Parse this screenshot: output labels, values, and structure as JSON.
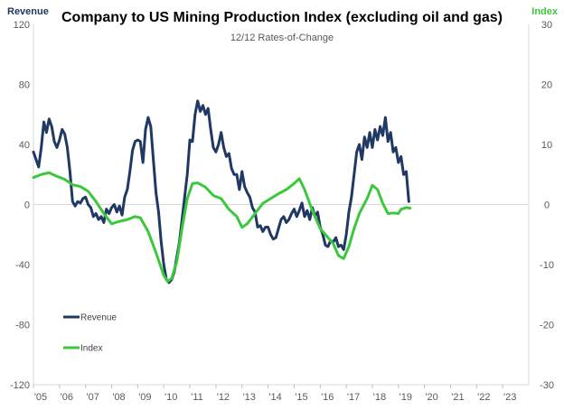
{
  "chart_data": {
    "type": "line",
    "title": "Company to US Mining Production Index (excluding oil and gas)",
    "subtitle": "12/12 Rates-of-Change",
    "y_left_label": "Revenue",
    "y_right_label": "Index",
    "y_left_range": [
      -120,
      120
    ],
    "y_left_ticks": [
      "120",
      "80",
      "40",
      "0",
      "-40",
      "-80",
      "-120"
    ],
    "y_right_range": [
      -30,
      30
    ],
    "y_right_ticks": [
      "30",
      "20",
      "10",
      "0",
      "-10",
      "-20",
      "-30"
    ],
    "x_range": [
      2005,
      2024
    ],
    "x_ticks": [
      "'05",
      "'06",
      "'07",
      "'08",
      "'09",
      "'10",
      "'11",
      "'12",
      "'13",
      "'14",
      "'15",
      "'16",
      "'17",
      "'18",
      "'19",
      "'20",
      "'21",
      "'22",
      "'23"
    ],
    "grid": false,
    "legend": "inside-bottom-left",
    "series": [
      {
        "name": "Revenue",
        "axis": "left",
        "color": "#1f3864",
        "points": [
          [
            2005.0,
            35
          ],
          [
            2005.1,
            30
          ],
          [
            2005.2,
            25
          ],
          [
            2005.3,
            38
          ],
          [
            2005.4,
            55
          ],
          [
            2005.5,
            48
          ],
          [
            2005.6,
            57
          ],
          [
            2005.7,
            52
          ],
          [
            2005.8,
            42
          ],
          [
            2005.9,
            38
          ],
          [
            2006.0,
            43
          ],
          [
            2006.1,
            50
          ],
          [
            2006.2,
            47
          ],
          [
            2006.3,
            38
          ],
          [
            2006.4,
            22
          ],
          [
            2006.5,
            2
          ],
          [
            2006.6,
            -1
          ],
          [
            2006.7,
            2
          ],
          [
            2006.8,
            1
          ],
          [
            2006.9,
            4
          ],
          [
            2007.0,
            5
          ],
          [
            2007.1,
            0
          ],
          [
            2007.2,
            -2
          ],
          [
            2007.3,
            -8
          ],
          [
            2007.4,
            -6
          ],
          [
            2007.5,
            -10
          ],
          [
            2007.6,
            -8
          ],
          [
            2007.7,
            -12
          ],
          [
            2007.8,
            -3
          ],
          [
            2007.9,
            -6
          ],
          [
            2008.0,
            -2
          ],
          [
            2008.1,
            0
          ],
          [
            2008.2,
            -5
          ],
          [
            2008.3,
            -1
          ],
          [
            2008.4,
            -7
          ],
          [
            2008.5,
            5
          ],
          [
            2008.6,
            10
          ],
          [
            2008.7,
            22
          ],
          [
            2008.8,
            36
          ],
          [
            2008.9,
            42
          ],
          [
            2009.0,
            43
          ],
          [
            2009.1,
            42
          ],
          [
            2009.2,
            28
          ],
          [
            2009.3,
            50
          ],
          [
            2009.4,
            58
          ],
          [
            2009.5,
            52
          ],
          [
            2009.6,
            30
          ],
          [
            2009.7,
            8
          ],
          [
            2009.8,
            -5
          ],
          [
            2009.9,
            -25
          ],
          [
            2010.0,
            -40
          ],
          [
            2010.1,
            -50
          ],
          [
            2010.2,
            -52
          ],
          [
            2010.3,
            -50
          ],
          [
            2010.4,
            -45
          ],
          [
            2010.5,
            -35
          ],
          [
            2010.6,
            -25
          ],
          [
            2010.7,
            -10
          ],
          [
            2010.8,
            5
          ],
          [
            2010.9,
            20
          ],
          [
            2011.0,
            43
          ],
          [
            2011.1,
            42
          ],
          [
            2011.2,
            60
          ],
          [
            2011.3,
            69
          ],
          [
            2011.4,
            62
          ],
          [
            2011.5,
            66
          ],
          [
            2011.6,
            60
          ],
          [
            2011.7,
            64
          ],
          [
            2011.8,
            50
          ],
          [
            2011.9,
            38
          ],
          [
            2012.0,
            35
          ],
          [
            2012.1,
            40
          ],
          [
            2012.2,
            48
          ],
          [
            2012.3,
            38
          ],
          [
            2012.4,
            32
          ],
          [
            2012.5,
            34
          ],
          [
            2012.6,
            24
          ],
          [
            2012.7,
            20
          ],
          [
            2012.8,
            20
          ],
          [
            2012.9,
            10
          ],
          [
            2013.0,
            22
          ],
          [
            2013.1,
            12
          ],
          [
            2013.2,
            8
          ],
          [
            2013.3,
            5
          ],
          [
            2013.4,
            -2
          ],
          [
            2013.5,
            -5
          ],
          [
            2013.6,
            -15
          ],
          [
            2013.7,
            -14
          ],
          [
            2013.8,
            -18
          ],
          [
            2013.9,
            -15
          ],
          [
            2014.0,
            -15
          ],
          [
            2014.1,
            -20
          ],
          [
            2014.2,
            -23
          ],
          [
            2014.3,
            -22
          ],
          [
            2014.4,
            -16
          ],
          [
            2014.5,
            -10
          ],
          [
            2014.6,
            -8
          ],
          [
            2014.7,
            -12
          ],
          [
            2014.8,
            -10
          ],
          [
            2014.9,
            -6
          ],
          [
            2015.0,
            -3
          ],
          [
            2015.1,
            -8
          ],
          [
            2015.2,
            -4
          ],
          [
            2015.3,
            1
          ],
          [
            2015.4,
            -8
          ],
          [
            2015.5,
            -4
          ],
          [
            2015.6,
            -10
          ],
          [
            2015.7,
            -2
          ],
          [
            2015.8,
            -8
          ],
          [
            2015.9,
            -5
          ],
          [
            2016.0,
            -15
          ],
          [
            2016.1,
            -20
          ],
          [
            2016.2,
            -27
          ],
          [
            2016.3,
            -28
          ],
          [
            2016.4,
            -24
          ],
          [
            2016.5,
            -25
          ],
          [
            2016.6,
            -22
          ],
          [
            2016.7,
            -28
          ],
          [
            2016.8,
            -27
          ],
          [
            2016.9,
            -30
          ],
          [
            2017.0,
            -20
          ],
          [
            2017.1,
            -5
          ],
          [
            2017.2,
            5
          ],
          [
            2017.3,
            20
          ],
          [
            2017.4,
            35
          ],
          [
            2017.5,
            40
          ],
          [
            2017.6,
            30
          ],
          [
            2017.7,
            45
          ],
          [
            2017.8,
            38
          ],
          [
            2017.9,
            48
          ],
          [
            2018.0,
            38
          ],
          [
            2018.1,
            50
          ],
          [
            2018.2,
            43
          ],
          [
            2018.3,
            52
          ],
          [
            2018.4,
            46
          ],
          [
            2018.5,
            58
          ],
          [
            2018.6,
            42
          ],
          [
            2018.7,
            48
          ],
          [
            2018.8,
            35
          ],
          [
            2018.9,
            38
          ],
          [
            2019.0,
            28
          ],
          [
            2019.1,
            32
          ],
          [
            2019.2,
            20
          ],
          [
            2019.3,
            22
          ],
          [
            2019.4,
            2
          ]
        ]
      },
      {
        "name": "Index",
        "axis": "right",
        "color": "#3cc83c",
        "points": [
          [
            2005.0,
            4.5
          ],
          [
            2005.3,
            5.0
          ],
          [
            2005.6,
            5.3
          ],
          [
            2005.9,
            4.7
          ],
          [
            2006.2,
            4.2
          ],
          [
            2006.5,
            3.3
          ],
          [
            2006.8,
            3.0
          ],
          [
            2007.1,
            2.2
          ],
          [
            2007.4,
            0.5
          ],
          [
            2007.7,
            -1.5
          ],
          [
            2008.0,
            -3.2
          ],
          [
            2008.3,
            -2.8
          ],
          [
            2008.6,
            -2.5
          ],
          [
            2008.9,
            -2.0
          ],
          [
            2009.1,
            -2.2
          ],
          [
            2009.4,
            -4.5
          ],
          [
            2009.7,
            -8.0
          ],
          [
            2010.0,
            -11.8
          ],
          [
            2010.15,
            -12.8
          ],
          [
            2010.3,
            -12.3
          ],
          [
            2010.5,
            -9.5
          ],
          [
            2010.7,
            -4.0
          ],
          [
            2010.9,
            1.0
          ],
          [
            2011.1,
            3.5
          ],
          [
            2011.3,
            3.6
          ],
          [
            2011.6,
            2.9
          ],
          [
            2011.9,
            1.5
          ],
          [
            2012.2,
            1.0
          ],
          [
            2012.5,
            -0.8
          ],
          [
            2012.8,
            -2.0
          ],
          [
            2013.0,
            -3.8
          ],
          [
            2013.2,
            -3.2
          ],
          [
            2013.5,
            -1.5
          ],
          [
            2013.8,
            0.2
          ],
          [
            2014.1,
            1.0
          ],
          [
            2014.4,
            1.8
          ],
          [
            2014.7,
            2.5
          ],
          [
            2015.0,
            3.5
          ],
          [
            2015.2,
            4.3
          ],
          [
            2015.4,
            2.5
          ],
          [
            2015.7,
            -1.0
          ],
          [
            2016.0,
            -4.0
          ],
          [
            2016.3,
            -5.5
          ],
          [
            2016.5,
            -6.5
          ],
          [
            2016.7,
            -8.5
          ],
          [
            2016.9,
            -9.0
          ],
          [
            2017.1,
            -7.0
          ],
          [
            2017.3,
            -4.0
          ],
          [
            2017.5,
            -1.5
          ],
          [
            2017.8,
            1.0
          ],
          [
            2018.0,
            3.2
          ],
          [
            2018.2,
            2.5
          ],
          [
            2018.4,
            0.2
          ],
          [
            2018.6,
            -1.5
          ],
          [
            2018.8,
            -1.4
          ],
          [
            2019.0,
            -1.5
          ],
          [
            2019.1,
            -0.8
          ],
          [
            2019.3,
            -0.5
          ],
          [
            2019.45,
            -0.6
          ]
        ]
      }
    ]
  }
}
